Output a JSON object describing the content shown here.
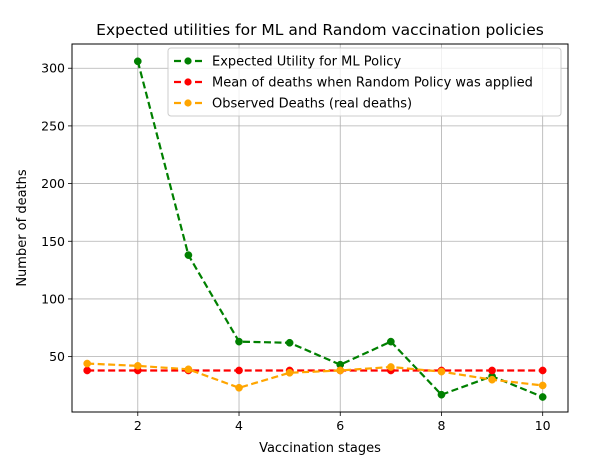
{
  "chart_data": {
    "type": "line",
    "title": "Expected utilities for ML and Random vaccination policies",
    "xlabel": "Vaccination stages",
    "ylabel": "Number of deaths",
    "xlim": [
      0.7,
      10.5
    ],
    "ylim": [
      2,
      321
    ],
    "xticks": [
      2,
      4,
      6,
      8,
      10
    ],
    "yticks": [
      50,
      100,
      150,
      200,
      250,
      300
    ],
    "grid": true,
    "legend_position": "top-right",
    "series": [
      {
        "name": "Expected Utility for ML Policy",
        "color": "#008000",
        "x": [
          2,
          3,
          4,
          5,
          6,
          7,
          8,
          9,
          10
        ],
        "values": [
          306,
          138,
          63,
          62,
          43,
          63,
          17,
          33,
          15
        ]
      },
      {
        "name": "Mean of deaths when Random Policy was applied",
        "color": "#ff0000",
        "x": [
          1,
          2,
          3,
          4,
          5,
          6,
          7,
          8,
          9,
          10
        ],
        "values": [
          38,
          38,
          38,
          38,
          38,
          38,
          38,
          38,
          38,
          38
        ]
      },
      {
        "name": "Observed Deaths (real deaths)",
        "color": "#ffa500",
        "x": [
          1,
          2,
          3,
          4,
          5,
          6,
          7,
          8,
          9,
          10
        ],
        "values": [
          44,
          42,
          39,
          23,
          36,
          38,
          41,
          37,
          30,
          25
        ]
      }
    ]
  }
}
